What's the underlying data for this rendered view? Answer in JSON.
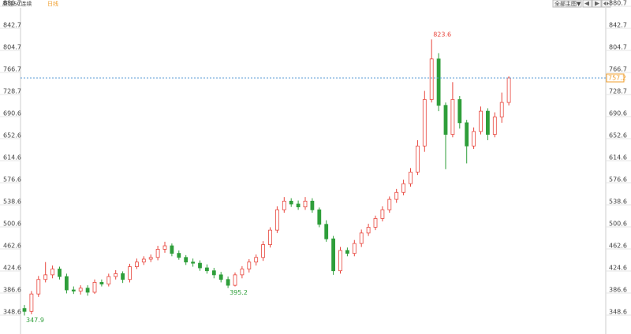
{
  "chart_data": {
    "type": "candlestick",
    "title": "原油SC连续",
    "period": "日线",
    "menu": "全部主图▼",
    "ylim": [
      348.6,
      880.7
    ],
    "yticks": [
      348.6,
      386.6,
      424.6,
      462.6,
      500.6,
      538.6,
      576.6,
      614.6,
      652.6,
      690.6,
      728.7,
      766.7,
      804.7,
      842.7,
      880.7
    ],
    "up_color": "#e8453c",
    "down_color": "#2e9e3a",
    "last_price": 757.2,
    "last_color": "#f0a030",
    "annotations": [
      823.6,
      395.2,
      347.9
    ],
    "open": [
      360,
      355,
      385,
      410,
      418,
      428,
      415,
      392,
      390,
      395,
      388,
      405,
      402,
      415,
      420,
      410,
      432,
      440,
      445,
      448,
      462,
      468,
      455,
      448,
      440,
      438,
      430,
      425,
      418,
      410,
      400,
      418,
      428,
      440,
      448,
      470,
      495,
      530,
      545,
      540,
      535,
      545,
      530,
      505,
      480,
      425,
      460,
      455,
      472,
      490,
      500,
      515,
      530,
      548,
      560,
      575,
      595,
      640,
      720,
      790,
      710,
      660,
      720,
      680,
      640,
      665,
      700,
      660,
      690,
      715
    ],
    "high": [
      366,
      390,
      416,
      440,
      434,
      432,
      420,
      398,
      400,
      400,
      410,
      410,
      420,
      426,
      424,
      437,
      446,
      450,
      453,
      468,
      475,
      472,
      460,
      452,
      446,
      443,
      436,
      430,
      423,
      415,
      422,
      433,
      445,
      453,
      476,
      500,
      536,
      552,
      550,
      546,
      552,
      550,
      534,
      512,
      485,
      466,
      465,
      478,
      496,
      506,
      520,
      536,
      553,
      566,
      582,
      602,
      650,
      735,
      823.6,
      800,
      715,
      750,
      726,
      685,
      672,
      708,
      705,
      698,
      732,
      760
    ],
    "low": [
      347.9,
      350,
      380,
      405,
      412,
      410,
      386,
      385,
      384,
      382,
      385,
      398,
      398,
      410,
      404,
      405,
      428,
      435,
      440,
      443,
      456,
      450,
      444,
      435,
      432,
      425,
      420,
      412,
      405,
      395.2,
      398,
      412,
      422,
      434,
      442,
      465,
      490,
      525,
      535,
      530,
      530,
      525,
      500,
      475,
      418,
      420,
      450,
      450,
      466,
      485,
      495,
      510,
      525,
      542,
      555,
      570,
      590,
      630,
      715,
      700,
      600,
      655,
      670,
      610,
      635,
      660,
      650,
      655,
      680,
      710
    ],
    "close": [
      355,
      385,
      410,
      418,
      428,
      415,
      392,
      390,
      395,
      388,
      405,
      402,
      415,
      420,
      410,
      432,
      440,
      445,
      448,
      462,
      468,
      455,
      448,
      440,
      438,
      430,
      425,
      418,
      410,
      400,
      418,
      428,
      440,
      448,
      470,
      495,
      530,
      545,
      540,
      535,
      545,
      530,
      505,
      480,
      425,
      460,
      455,
      472,
      490,
      500,
      515,
      530,
      548,
      560,
      575,
      595,
      640,
      720,
      790,
      710,
      660,
      720,
      680,
      640,
      665,
      700,
      660,
      690,
      715,
      757.2
    ]
  }
}
